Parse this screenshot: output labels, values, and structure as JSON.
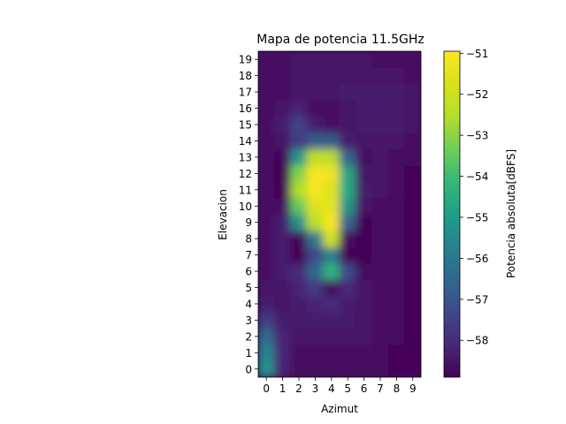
{
  "chart_data": {
    "type": "heatmap",
    "title": "Mapa de potencia 11.5GHz",
    "xlabel": "Azimut",
    "ylabel": "Elevacion",
    "x_categories": [
      0,
      1,
      2,
      3,
      4,
      5,
      6,
      7,
      8,
      9
    ],
    "y_categories": [
      0,
      1,
      2,
      3,
      4,
      5,
      6,
      7,
      8,
      9,
      10,
      11,
      12,
      13,
      14,
      15,
      16,
      17,
      18,
      19
    ],
    "xlim": [
      -0.5,
      9.5
    ],
    "ylim": [
      -0.5,
      19.5
    ],
    "grid": false,
    "interpolation": "bicubic",
    "colormap": "viridis",
    "colorbar": {
      "label": "Potencia absoluta[dBFS]",
      "range": [
        -58.9,
        -50.95
      ],
      "ticks": [
        -51,
        -52,
        -53,
        -54,
        -55,
        -56,
        -57,
        -58
      ]
    },
    "values_dBFS": [
      [
        -55.2,
        -58.2,
        -58.7,
        -58.7,
        -58.7,
        -58.6,
        -58.7,
        -58.7,
        -58.8,
        -58.8
      ],
      [
        -55.6,
        -58.1,
        -58.6,
        -58.6,
        -58.6,
        -58.6,
        -58.6,
        -58.7,
        -58.8,
        -58.8
      ],
      [
        -56.4,
        -58.2,
        -58.5,
        -58.5,
        -58.5,
        -58.5,
        -58.5,
        -58.6,
        -58.7,
        -58.8
      ],
      [
        -57.6,
        -58.4,
        -58.4,
        -58.4,
        -58.4,
        -58.4,
        -58.5,
        -58.6,
        -58.7,
        -58.8
      ],
      [
        -58.3,
        -58.5,
        -58.4,
        -58.2,
        -58.0,
        -58.3,
        -58.5,
        -58.6,
        -58.7,
        -58.8
      ],
      [
        -58.5,
        -58.5,
        -58.2,
        -57.6,
        -58.7,
        -58.0,
        -58.5,
        -58.6,
        -58.7,
        -58.8
      ],
      [
        -58.6,
        -58.3,
        -58.0,
        -56.5,
        -54.3,
        -57.2,
        -58.7,
        -58.6,
        -58.7,
        -58.8
      ],
      [
        -58.6,
        -58.3,
        -58.8,
        -57.3,
        -55.8,
        -58.8,
        -58.8,
        -58.6,
        -58.7,
        -58.8
      ],
      [
        -58.6,
        -58.3,
        -58.8,
        -56.0,
        -52.0,
        -58.7,
        -58.8,
        -58.6,
        -58.7,
        -58.8
      ],
      [
        -58.6,
        -58.3,
        -55.3,
        -52.4,
        -51.1,
        -56.5,
        -58.8,
        -58.6,
        -58.7,
        -58.8
      ],
      [
        -58.6,
        -58.6,
        -53.5,
        -51.6,
        -51.5,
        -55.2,
        -58.5,
        -58.6,
        -58.7,
        -58.8
      ],
      [
        -58.6,
        -58.8,
        -52.6,
        -51.1,
        -51.6,
        -54.6,
        -58.4,
        -58.5,
        -58.6,
        -58.8
      ],
      [
        -58.6,
        -58.9,
        -53.1,
        -51.1,
        -51.2,
        -54.7,
        -58.5,
        -58.5,
        -58.6,
        -58.8
      ],
      [
        -58.6,
        -58.8,
        -55.1,
        -52.3,
        -52.4,
        -56.5,
        -58.6,
        -58.5,
        -58.6,
        -58.7
      ],
      [
        -58.6,
        -58.5,
        -57.6,
        -56.8,
        -56.8,
        -58.4,
        -58.5,
        -58.5,
        -58.5,
        -58.6
      ],
      [
        -58.6,
        -58.3,
        -57.4,
        -58.3,
        -58.6,
        -58.5,
        -58.4,
        -58.4,
        -58.4,
        -58.5
      ],
      [
        -58.6,
        -58.5,
        -58.2,
        -58.6,
        -58.6,
        -58.5,
        -58.4,
        -58.3,
        -58.4,
        -58.5
      ],
      [
        -58.6,
        -58.6,
        -58.5,
        -58.5,
        -58.5,
        -58.4,
        -58.4,
        -58.4,
        -58.4,
        -58.5
      ],
      [
        -58.6,
        -58.6,
        -58.5,
        -58.5,
        -58.5,
        -58.5,
        -58.5,
        -58.5,
        -58.5,
        -58.6
      ],
      [
        -58.6,
        -58.6,
        -58.5,
        -58.5,
        -58.5,
        -58.5,
        -58.5,
        -58.6,
        -58.6,
        -58.6
      ]
    ]
  }
}
